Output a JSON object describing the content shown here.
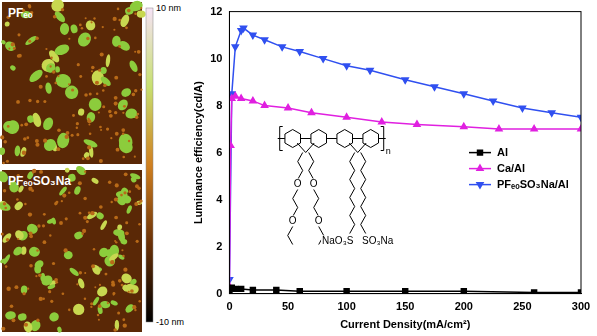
{
  "chart_data": {
    "type": "line",
    "xlabel": "Current Density(mA/cm²)",
    "ylabel": "Luminance efficiency(cd/A)",
    "xlim": [
      0,
      300
    ],
    "xticks": [
      0,
      50,
      100,
      150,
      200,
      250,
      300
    ],
    "ylim": [
      0,
      12
    ],
    "yticks": [
      0,
      2,
      4,
      6,
      8,
      10,
      12
    ],
    "grid": false,
    "legend": "right",
    "series": [
      {
        "name": "Al",
        "color": "#000000",
        "marker": "square",
        "x": [
          0,
          2,
          5,
          10,
          20,
          40,
          60,
          100,
          150,
          200,
          260,
          300
        ],
        "values": [
          0.1,
          0.25,
          0.2,
          0.2,
          0.15,
          0.15,
          0.1,
          0.1,
          0.1,
          0.1,
          0.05,
          0.05
        ]
      },
      {
        "name": "Ca/Al",
        "color": "#e020e0",
        "marker": "triangle",
        "x": [
          0,
          1,
          2,
          5,
          10,
          20,
          30,
          50,
          70,
          100,
          130,
          160,
          200,
          230,
          260,
          300
        ],
        "values": [
          0.3,
          6.3,
          8.3,
          8.4,
          8.3,
          8.2,
          8.0,
          7.9,
          7.7,
          7.5,
          7.3,
          7.2,
          7.1,
          7.0,
          7.0,
          7.0
        ]
      },
      {
        "name": "PFₑₒSO₃Na/Al",
        "color": "#3050f0",
        "marker": "triangle-down",
        "x": [
          0,
          2,
          5,
          10,
          12,
          20,
          30,
          45,
          60,
          80,
          100,
          120,
          150,
          175,
          200,
          225,
          250,
          275,
          300
        ],
        "values": [
          0.6,
          8.5,
          10.5,
          11.2,
          11.3,
          11.0,
          10.8,
          10.5,
          10.3,
          10.0,
          9.7,
          9.5,
          9.1,
          8.8,
          8.5,
          8.2,
          7.9,
          7.7,
          7.5
        ]
      }
    ],
    "annotations": [
      "n",
      "O",
      "NaO₃S",
      "SO₃Na"
    ]
  },
  "images": [
    {
      "label": "PFₑₒ"
    },
    {
      "label": "PFₑₒSO₃Na"
    }
  ],
  "colorbar": {
    "range": [
      -10,
      10
    ],
    "ticks": [
      {
        "value": 10,
        "label": "10 nm"
      },
      {
        "value": -10,
        "label": "-10 nm"
      }
    ]
  }
}
